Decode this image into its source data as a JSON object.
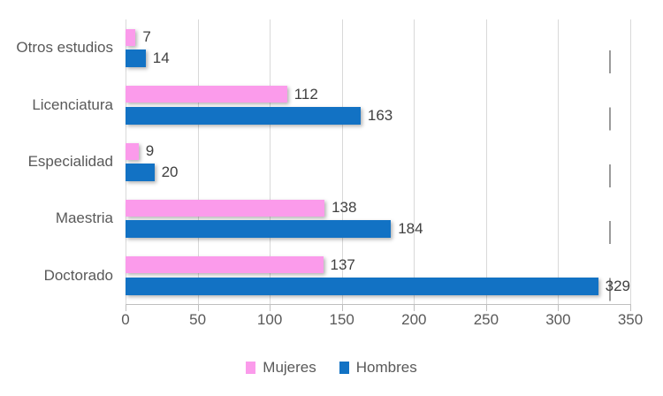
{
  "chart_data": {
    "type": "bar",
    "orientation": "horizontal",
    "title": "",
    "xlabel": "",
    "ylabel": "",
    "categories": [
      "Otros estudios",
      "Licenciatura",
      "Especialidad",
      "Maestria",
      "Doctorado"
    ],
    "series": [
      {
        "name": "Mujeres",
        "color": "#fb9beb",
        "values": [
          7,
          112,
          9,
          138,
          137
        ]
      },
      {
        "name": "Hombres",
        "color": "#1272c4",
        "values": [
          14,
          163,
          20,
          184,
          329
        ]
      }
    ],
    "data_labels": [
      "7",
      "14",
      "112",
      "163",
      "9",
      "20",
      "138",
      "184",
      "137",
      "329"
    ],
    "x_ticks": [
      0,
      50,
      100,
      150,
      200,
      250,
      300,
      350
    ],
    "x_tick_labels": [
      "0",
      "50",
      "100",
      "150",
      "200",
      "250",
      "300",
      "350"
    ],
    "xlim": [
      0,
      350
    ],
    "grid": "vertical-major-on",
    "legend_position": "bottom-center",
    "legend": [
      "Mujeres",
      "Hombres"
    ],
    "reference_line": {
      "value": 335,
      "style": "dashed-vertical"
    }
  },
  "colors": {
    "mujeres_pink": "#fb9beb",
    "hombres_blue": "#1272c4",
    "gridline": "#d9d9d9",
    "axis_line": "#bfbfbf",
    "axis_text": "#595959",
    "data_label_text": "#404040",
    "dashed_line": "#9b9b9b",
    "background": "#ffffff"
  }
}
